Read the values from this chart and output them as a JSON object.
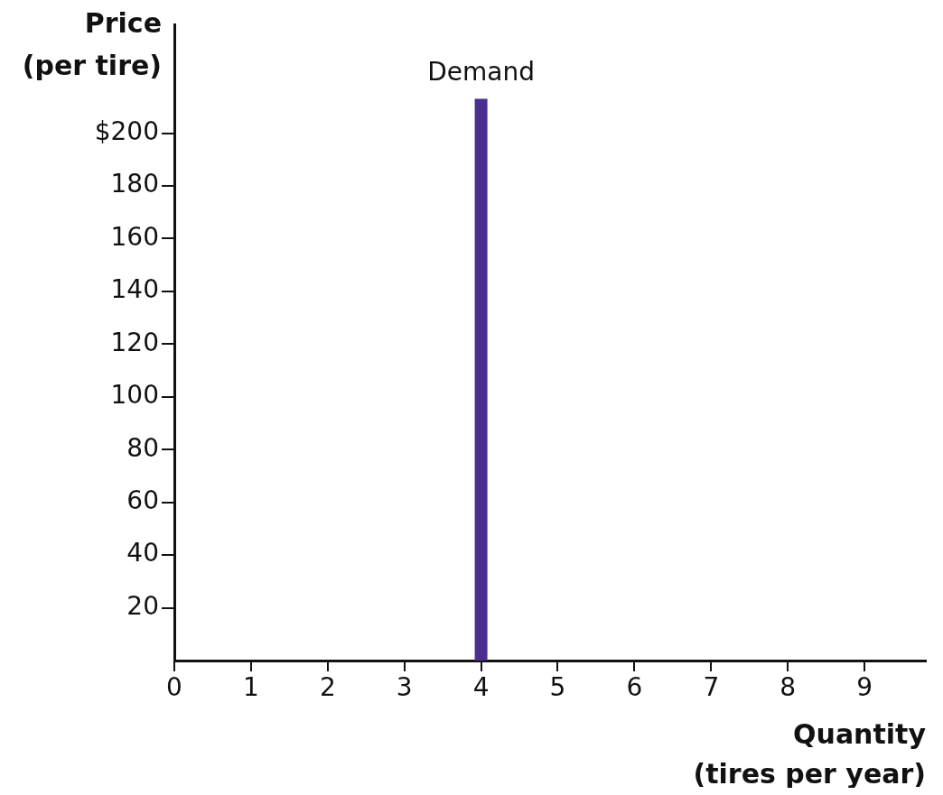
{
  "chart_data": {
    "type": "line",
    "xlabel": "Quantity\n(tires per year)",
    "ylabel": "Price\n(per tire)",
    "x": [
      4,
      4
    ],
    "series": [
      {
        "name": "Demand",
        "color": "#4a2f90",
        "values": [
          0,
          213
        ]
      }
    ],
    "xlim": [
      0,
      9.8
    ],
    "xticks": [
      0,
      1,
      2,
      3,
      4,
      5,
      6,
      7,
      8,
      9
    ],
    "ylim": [
      0,
      241
    ],
    "yticks": [
      20,
      40,
      60,
      80,
      100,
      120,
      140,
      160,
      180,
      {
        "value": 200,
        "label": "$200"
      }
    ],
    "grid": false,
    "legend": false,
    "marker": "none",
    "line_style": "solid"
  }
}
